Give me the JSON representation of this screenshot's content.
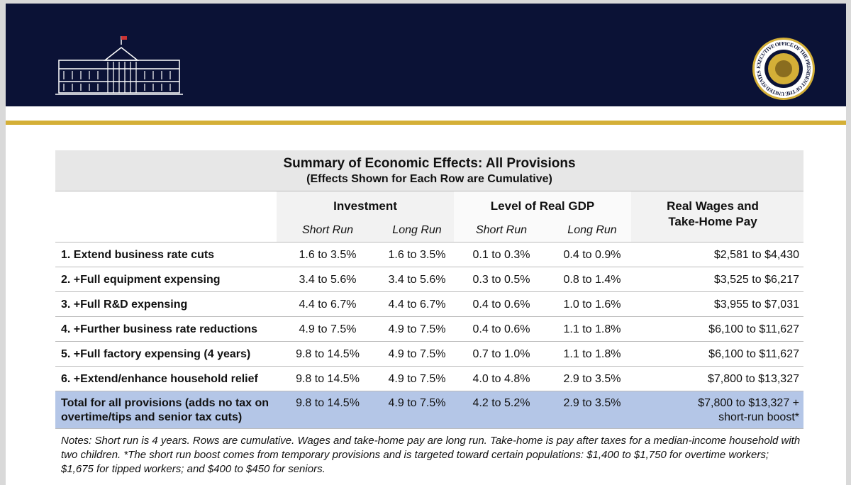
{
  "header": {
    "seal_text": "EXECUTIVE OFFICE OF THE PRESIDENT OF THE UNITED STATES"
  },
  "table": {
    "title": "Summary of Economic Effects: All Provisions",
    "subtitle": "(Effects Shown for Each Row are Cumulative)",
    "column_groups": [
      "Investment",
      "Level of Real GDP",
      "Real Wages and Take-Home Pay"
    ],
    "subcolumns": [
      "Short Run",
      "Long Run",
      "Short Run",
      "Long Run"
    ],
    "rows": [
      [
        "1. Extend business rate cuts",
        "1.6 to 3.5%",
        "1.6 to 3.5%",
        "0.1 to 0.3%",
        "0.4 to 0.9%",
        "$2,581 to $4,430"
      ],
      [
        "2. +Full equipment expensing",
        "3.4 to 5.6%",
        "3.4 to 5.6%",
        "0.3 to 0.5%",
        "0.8 to 1.4%",
        "$3,525 to $6,217"
      ],
      [
        "3. +Full R&D expensing",
        "4.4 to 6.7%",
        "4.4 to 6.7%",
        "0.4 to 0.6%",
        "1.0 to 1.6%",
        "$3,955 to $7,031"
      ],
      [
        "4. +Further business rate reductions",
        "4.9 to 7.5%",
        "4.9 to 7.5%",
        "0.4 to 0.6%",
        "1.1 to 1.8%",
        "$6,100 to $11,627"
      ],
      [
        "5. +Full factory expensing (4 years)",
        "9.8 to 14.5%",
        "4.9 to 7.5%",
        "0.7 to 1.0%",
        "1.1 to 1.8%",
        "$6,100 to $11,627"
      ],
      [
        "6. +Extend/enhance household relief",
        "9.8 to 14.5%",
        "4.9 to 7.5%",
        "4.0 to 4.8%",
        "2.9 to 3.5%",
        "$7,800 to $13,327"
      ]
    ],
    "total": [
      "Total for all provisions (adds no tax on overtime/tips and senior tax cuts)",
      "9.8 to 14.5%",
      "4.9 to 7.5%",
      "4.2 to 5.2%",
      "2.9 to 3.5%",
      "$7,800 to $13,327 + short-run boost*"
    ]
  },
  "notes": "Notes: Short run is 4 years. Rows are cumulative. Wages and take-home pay are long run. Take-home is pay after taxes for a median-income household with two children. *The short run boost comes from temporary provisions and is targeted toward certain populations: $1,400 to $1,750 for overtime workers; $1,675 for tipped workers; and $400 to $450 for seniors."
}
